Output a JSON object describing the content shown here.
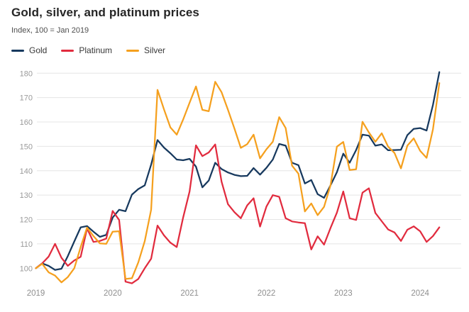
{
  "header": {
    "title": "Gold, silver, and platinum prices",
    "subtitle": "Index, 100 = Jan 2019"
  },
  "legend": [
    {
      "label": "Gold",
      "color": "#17395E"
    },
    {
      "label": "Platinum",
      "color": "#E12B3E"
    },
    {
      "label": "Silver",
      "color": "#F5A01E"
    }
  ],
  "colors": {
    "grid": "#e5e5e5",
    "y_tick_text": "#9a9a9a",
    "x_tick_text": "#8f8f8f",
    "title_text": "#262626",
    "subtitle_text": "#4d4d4d"
  },
  "chart_data": {
    "type": "line",
    "title": "Gold, silver, and platinum prices",
    "subtitle": "Index, 100 = Jan 2019",
    "x_unit": "month",
    "x_start": "2019-01",
    "x_end": "2024-04",
    "x_tick_labels": [
      "2019",
      "2020",
      "2021",
      "2022",
      "2023",
      "2024"
    ],
    "y_ticks": [
      100,
      110,
      120,
      130,
      140,
      150,
      160,
      170,
      180
    ],
    "ylim": [
      92,
      183
    ],
    "grid": "horizontal-only",
    "legend_position": "top-left",
    "series": [
      {
        "name": "Gold",
        "color": "#17395E",
        "values": [
          100,
          102,
          101,
          99.3,
          99.8,
          105,
          111,
          116.8,
          117.3,
          115,
          112.9,
          113.7,
          120.8,
          124,
          123.4,
          130.2,
          132.5,
          134,
          142.5,
          152.6,
          149.5,
          147.2,
          144.6,
          144.3,
          144.9,
          141.7,
          133.2,
          136,
          143.3,
          140.7,
          139.3,
          138.3,
          137.8,
          137.9,
          141.1,
          138.4,
          141.2,
          144.6,
          151,
          150.3,
          143.3,
          142.3,
          134.8,
          136.2,
          130.4,
          128.9,
          134,
          139.4,
          147,
          143.3,
          148.5,
          154.8,
          154.4,
          150.3,
          150.8,
          148.4,
          148.5,
          148.6,
          154.6,
          157.2,
          157.5,
          156.5,
          167,
          180.5
        ]
      },
      {
        "name": "Platinum",
        "color": "#E12B3E",
        "values": [
          100,
          102,
          104.8,
          110,
          104.3,
          101,
          103.2,
          104.7,
          116.3,
          110.8,
          111.2,
          112.2,
          123.5,
          119.8,
          94.5,
          93.8,
          95.6,
          100,
          103.9,
          117.5,
          113.5,
          110.5,
          108.7,
          120.8,
          131.5,
          150.4,
          146,
          147.5,
          150.8,
          135.5,
          126.3,
          123,
          120.5,
          125.8,
          128.7,
          117.1,
          125.3,
          130,
          129.3,
          120.5,
          119.2,
          118.8,
          118.5,
          107.7,
          113.1,
          109.7,
          116.5,
          122.8,
          131.5,
          120.5,
          119.8,
          131,
          132.8,
          122.7,
          119.3,
          115.9,
          114.7,
          111.2,
          115.8,
          117.2,
          115.2,
          110.8,
          113.2,
          116.8
        ]
      },
      {
        "name": "Silver",
        "color": "#F5A01E",
        "values": [
          100,
          101.8,
          98.3,
          97,
          94.2,
          96.4,
          100,
          108.7,
          116.7,
          113.2,
          110.2,
          110,
          115,
          115.2,
          95.6,
          95.9,
          102.4,
          111.1,
          124,
          173.2,
          165.2,
          157.8,
          154.8,
          161,
          167.9,
          174.6,
          165,
          164.4,
          176.5,
          172.2,
          165,
          157.3,
          149.4,
          150.9,
          154.8,
          145.1,
          148.8,
          151.9,
          162,
          157.5,
          142.1,
          138.8,
          123.3,
          126.6,
          121.8,
          125.2,
          134,
          149.9,
          151.8,
          140.3,
          140.6,
          160.1,
          155.7,
          151.9,
          155.4,
          149.9,
          147.3,
          141,
          150.3,
          153.3,
          148.2,
          145.3,
          157,
          176
        ]
      }
    ]
  }
}
